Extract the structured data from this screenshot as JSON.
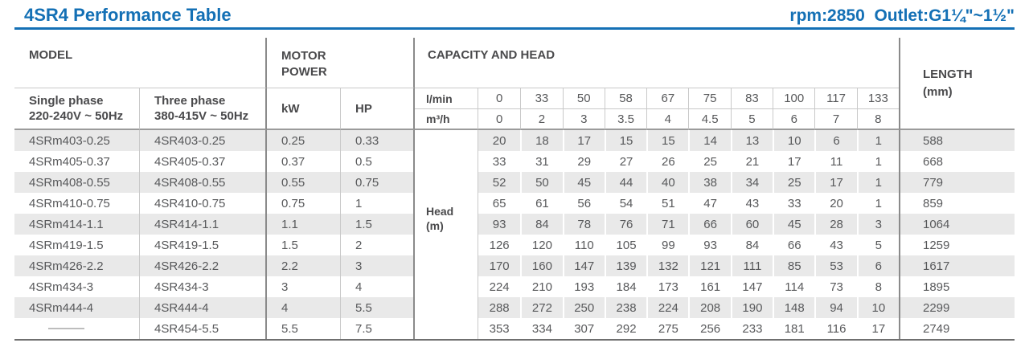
{
  "header": {
    "title": "4SR4 Performance Table",
    "spec": "rpm:2850  Outlet:G1¼\"~1½\"",
    "accent_color": "#1470b5"
  },
  "table": {
    "model_header": "MODEL",
    "motor_power_header": "MOTOR POWER",
    "capacity_header": "CAPACITY AND HEAD",
    "length_header_line1": "LENGTH",
    "length_header_line2": "(mm)",
    "single_phase_line1": "Single phase",
    "single_phase_line2": "220-240V ~ 50Hz",
    "three_phase_line1": "Three phase",
    "three_phase_line2": "380-415V ~ 50Hz",
    "kw_header": "kW",
    "hp_header": "HP",
    "lmin_label": "l/min",
    "m3h_label": "m³/h",
    "head_label_line1": "Head",
    "head_label_line2": "(m)",
    "lmin_values": [
      "0",
      "33",
      "50",
      "58",
      "67",
      "75",
      "83",
      "100",
      "117",
      "133"
    ],
    "m3h_values": [
      "0",
      "2",
      "3",
      "3.5",
      "4",
      "4.5",
      "5",
      "6",
      "7",
      "8"
    ],
    "stripe_color": "#e9e9e9",
    "rows": [
      {
        "single": "4SRm403-0.25",
        "three": "4SR403-0.25",
        "kw": "0.25",
        "hp": "0.33",
        "head": [
          "20",
          "18",
          "17",
          "15",
          "15",
          "14",
          "13",
          "10",
          "6",
          "1"
        ],
        "length": "588"
      },
      {
        "single": "4SRm405-0.37",
        "three": "4SR405-0.37",
        "kw": "0.37",
        "hp": "0.5",
        "head": [
          "33",
          "31",
          "29",
          "27",
          "26",
          "25",
          "21",
          "17",
          "11",
          "1"
        ],
        "length": "668"
      },
      {
        "single": "4SRm408-0.55",
        "three": "4SR408-0.55",
        "kw": "0.55",
        "hp": "0.75",
        "head": [
          "52",
          "50",
          "45",
          "44",
          "40",
          "38",
          "34",
          "25",
          "17",
          "1"
        ],
        "length": "779"
      },
      {
        "single": "4SRm410-0.75",
        "three": "4SR410-0.75",
        "kw": "0.75",
        "hp": "1",
        "head": [
          "65",
          "61",
          "56",
          "54",
          "51",
          "47",
          "43",
          "33",
          "20",
          "1"
        ],
        "length": "859"
      },
      {
        "single": "4SRm414-1.1",
        "three": "4SR414-1.1",
        "kw": "1.1",
        "hp": "1.5",
        "head": [
          "93",
          "84",
          "78",
          "76",
          "71",
          "66",
          "60",
          "45",
          "28",
          "3"
        ],
        "length": "1064"
      },
      {
        "single": "4SRm419-1.5",
        "three": "4SR419-1.5",
        "kw": "1.5",
        "hp": "2",
        "head": [
          "126",
          "120",
          "110",
          "105",
          "99",
          "93",
          "84",
          "66",
          "43",
          "5"
        ],
        "length": "1259"
      },
      {
        "single": "4SRm426-2.2",
        "three": "4SR426-2.2",
        "kw": "2.2",
        "hp": "3",
        "head": [
          "170",
          "160",
          "147",
          "139",
          "132",
          "121",
          "111",
          "85",
          "53",
          "6"
        ],
        "length": "1617"
      },
      {
        "single": "4SRm434-3",
        "three": "4SR434-3",
        "kw": "3",
        "hp": "4",
        "head": [
          "224",
          "210",
          "193",
          "184",
          "173",
          "161",
          "147",
          "114",
          "73",
          "8"
        ],
        "length": "1895"
      },
      {
        "single": "4SRm444-4",
        "three": "4SR444-4",
        "kw": "4",
        "hp": "5.5",
        "head": [
          "288",
          "272",
          "250",
          "238",
          "224",
          "208",
          "190",
          "148",
          "94",
          "10"
        ],
        "length": "2299"
      },
      {
        "single": "",
        "three": "4SR454-5.5",
        "kw": "5.5",
        "hp": "7.5",
        "head": [
          "353",
          "334",
          "307",
          "292",
          "275",
          "256",
          "233",
          "181",
          "116",
          "17"
        ],
        "length": "2749"
      }
    ]
  }
}
